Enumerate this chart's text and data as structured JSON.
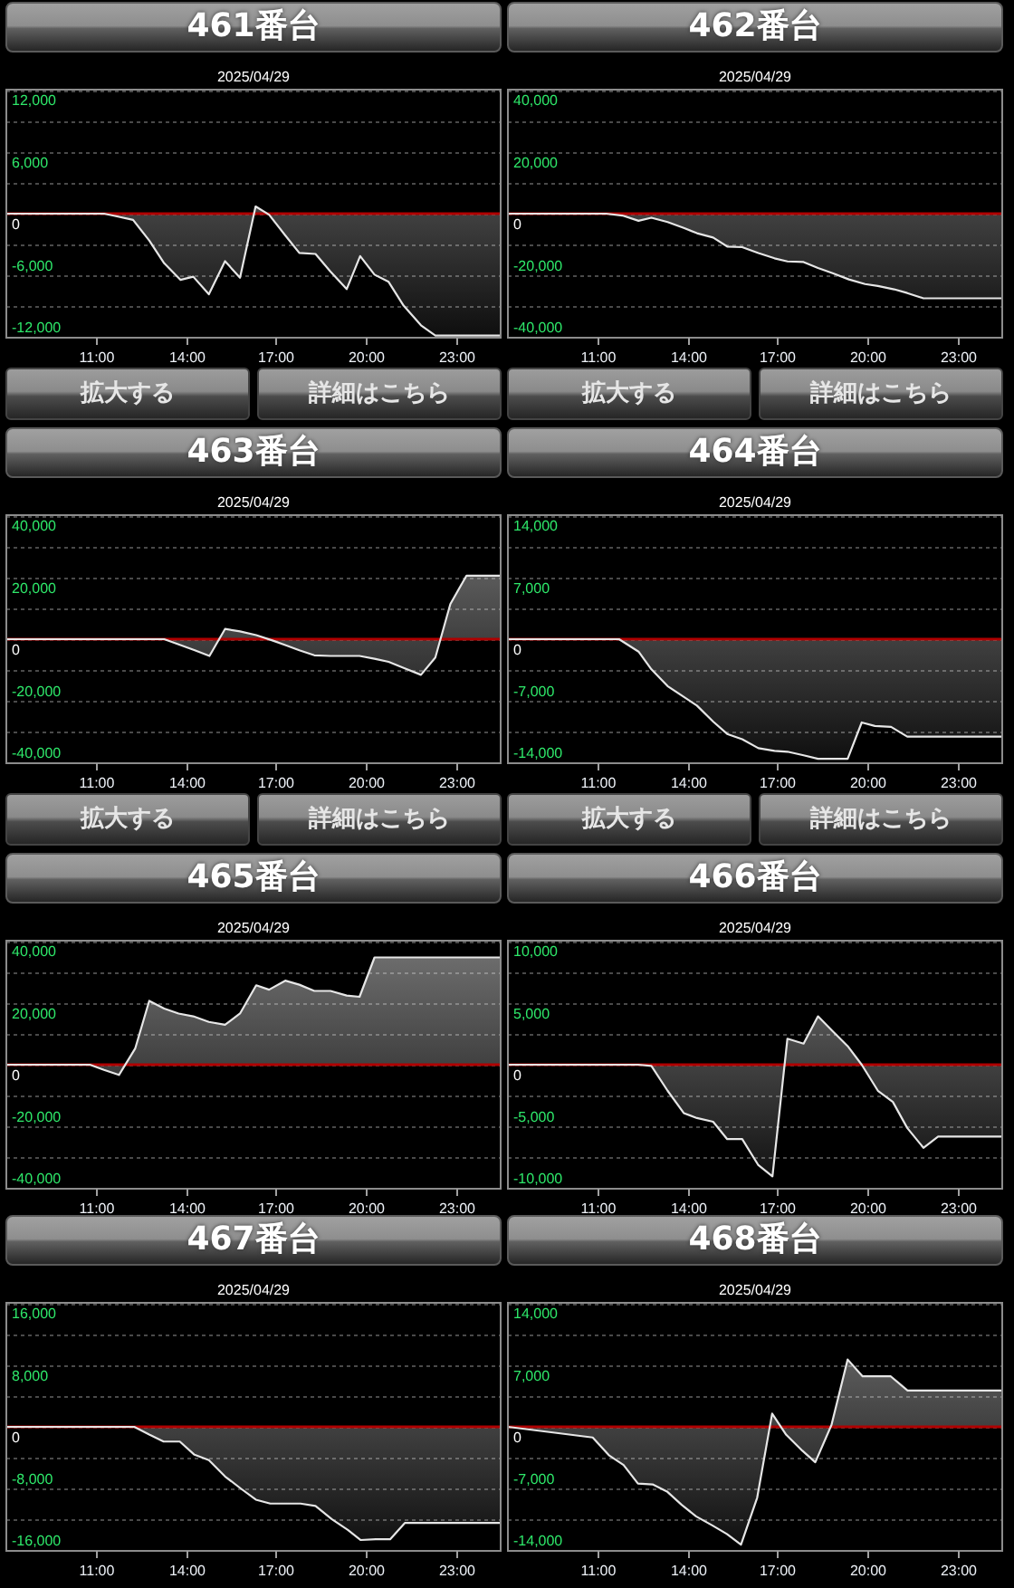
{
  "chart_data": [
    {
      "type": "area",
      "title": "461番台",
      "subtitle": "2025/04/29",
      "color": "#e6e6e6",
      "x": [
        8,
        11.26,
        11.59,
        12.23,
        12.77,
        13.27,
        13.81,
        14.24,
        14.76,
        15.3,
        15.8,
        16.32,
        16.77,
        17.31,
        17.78,
        18.32,
        18.82,
        19.36,
        19.81,
        20.29,
        20.76,
        21.26,
        21.84,
        22.32,
        24.5
      ],
      "values": [
        0,
        0,
        -200,
        -600,
        -2600,
        -4800,
        -6400,
        -6100,
        -7800,
        -4600,
        -6200,
        700,
        -100,
        -2100,
        -3800,
        -3900,
        -5600,
        -7300,
        -4100,
        -5900,
        -6600,
        -8900,
        -10800,
        -11800,
        -11800
      ],
      "xlim": [
        8,
        24.5
      ],
      "ylim": [
        -12000,
        12000
      ],
      "xticks": [
        {
          "value": 11,
          "label": "11:00"
        },
        {
          "value": 14,
          "label": "14:00"
        },
        {
          "value": 17,
          "label": "17:00"
        },
        {
          "value": 20,
          "label": "20:00"
        },
        {
          "value": 23,
          "label": "23:00"
        }
      ],
      "yticks": [
        {
          "value": -12000,
          "label": "-12,000"
        },
        {
          "value": -9000,
          "label": null
        },
        {
          "value": -6000,
          "label": "-6,000"
        },
        {
          "value": -3000,
          "label": null
        },
        {
          "value": 0,
          "label": "0"
        },
        {
          "value": 3000,
          "label": null
        },
        {
          "value": 6000,
          "label": "6,000"
        },
        {
          "value": 9000,
          "label": null
        },
        {
          "value": 12000,
          "label": "12,000"
        }
      ],
      "grid": "y",
      "ref_lines": [
        {
          "axis": "y",
          "value": 0,
          "color": "#b00000"
        }
      ],
      "annotations": [
        "拡大する",
        "詳細はこちら"
      ]
    },
    {
      "type": "area",
      "title": "462番台",
      "subtitle": "2025/04/29",
      "color": "#e6e6e6",
      "x": [
        8,
        11.28,
        11.82,
        12.36,
        12.79,
        13.33,
        13.87,
        14.31,
        14.85,
        15.32,
        15.82,
        16.36,
        16.9,
        17.33,
        17.87,
        18.35,
        18.84,
        19.38,
        19.92,
        20.35,
        20.89,
        21.33,
        21.87,
        24.5
      ],
      "values": [
        0,
        0,
        -600,
        -2300,
        -1300,
        -2700,
        -4600,
        -6300,
        -7700,
        -10600,
        -10800,
        -12700,
        -14400,
        -15400,
        -15600,
        -17500,
        -19200,
        -21200,
        -22700,
        -23300,
        -24400,
        -25600,
        -27300,
        -27300
      ],
      "xlim": [
        8,
        24.5
      ],
      "ylim": [
        -40000,
        40000
      ],
      "xticks": [
        {
          "value": 11,
          "label": "11:00"
        },
        {
          "value": 14,
          "label": "14:00"
        },
        {
          "value": 17,
          "label": "17:00"
        },
        {
          "value": 20,
          "label": "20:00"
        },
        {
          "value": 23,
          "label": "23:00"
        }
      ],
      "yticks": [
        {
          "value": -40000,
          "label": "-40,000"
        },
        {
          "value": -30000,
          "label": null
        },
        {
          "value": -20000,
          "label": "-20,000"
        },
        {
          "value": -10000,
          "label": null
        },
        {
          "value": 0,
          "label": "0"
        },
        {
          "value": 10000,
          "label": null
        },
        {
          "value": 20000,
          "label": "20,000"
        },
        {
          "value": 30000,
          "label": null
        },
        {
          "value": 40000,
          "label": "40,000"
        }
      ],
      "grid": "y",
      "ref_lines": [
        {
          "axis": "y",
          "value": 0,
          "color": "#b00000"
        }
      ],
      "annotations": [
        "拡大する",
        "詳細はこちら"
      ]
    },
    {
      "type": "area",
      "title": "463番台",
      "subtitle": "2025/04/29",
      "color": "#e6e6e6",
      "x": [
        8,
        13.27,
        13.75,
        14.29,
        14.78,
        15.3,
        15.8,
        16.34,
        16.88,
        17.31,
        17.78,
        18.28,
        18.82,
        19.36,
        19.79,
        20.29,
        20.76,
        21.3,
        21.84,
        22.32,
        22.82,
        23.36,
        24.5
      ],
      "values": [
        0,
        0,
        -1700,
        -3600,
        -5400,
        3300,
        2500,
        1300,
        -400,
        -1900,
        -3600,
        -5200,
        -5400,
        -5400,
        -5400,
        -6300,
        -7300,
        -9400,
        -11500,
        -5900,
        11300,
        20500,
        20500
      ],
      "xlim": [
        8,
        24.5
      ],
      "ylim": [
        -40000,
        40000
      ],
      "xticks": [
        {
          "value": 11,
          "label": "11:00"
        },
        {
          "value": 14,
          "label": "14:00"
        },
        {
          "value": 17,
          "label": "17:00"
        },
        {
          "value": 20,
          "label": "20:00"
        },
        {
          "value": 23,
          "label": "23:00"
        }
      ],
      "yticks": [
        {
          "value": -40000,
          "label": "-40,000"
        },
        {
          "value": -30000,
          "label": null
        },
        {
          "value": -20000,
          "label": "-20,000"
        },
        {
          "value": -10000,
          "label": null
        },
        {
          "value": 0,
          "label": "0"
        },
        {
          "value": 10000,
          "label": null
        },
        {
          "value": 20000,
          "label": "20,000"
        },
        {
          "value": 30000,
          "label": null
        },
        {
          "value": 40000,
          "label": "40,000"
        }
      ],
      "grid": "y",
      "ref_lines": [
        {
          "axis": "y",
          "value": 0,
          "color": "#b00000"
        }
      ],
      "annotations": [
        "拡大する",
        "詳細はこちら"
      ]
    },
    {
      "type": "area",
      "title": "464番台",
      "subtitle": "2025/04/29",
      "color": "#e6e6e6",
      "x": [
        8,
        11.71,
        12.36,
        12.79,
        13.33,
        14.31,
        14.85,
        15.32,
        15.82,
        16.36,
        16.9,
        17.33,
        17.87,
        18.35,
        19.34,
        19.81,
        20.25,
        20.79,
        21.33,
        24.5
      ],
      "values": [
        0,
        0,
        -1400,
        -3400,
        -5300,
        -7500,
        -9300,
        -10700,
        -11300,
        -12300,
        -12600,
        -12700,
        -13100,
        -13500,
        -13500,
        -9400,
        -9800,
        -9900,
        -11000,
        -11000
      ],
      "xlim": [
        8,
        24.5
      ],
      "ylim": [
        -14000,
        14000
      ],
      "xticks": [
        {
          "value": 11,
          "label": "11:00"
        },
        {
          "value": 14,
          "label": "14:00"
        },
        {
          "value": 17,
          "label": "17:00"
        },
        {
          "value": 20,
          "label": "20:00"
        },
        {
          "value": 23,
          "label": "23:00"
        }
      ],
      "yticks": [
        {
          "value": -14000,
          "label": "-14,000"
        },
        {
          "value": -10500,
          "label": null
        },
        {
          "value": -7000,
          "label": "-7,000"
        },
        {
          "value": -3500,
          "label": null
        },
        {
          "value": 0,
          "label": "0"
        },
        {
          "value": 3500,
          "label": null
        },
        {
          "value": 7000,
          "label": "7,000"
        },
        {
          "value": 10500,
          "label": null
        },
        {
          "value": 14000,
          "label": "14,000"
        }
      ],
      "grid": "y",
      "ref_lines": [
        {
          "axis": "y",
          "value": 0,
          "color": "#b00000"
        }
      ],
      "annotations": [
        "拡大する",
        "詳細はこちら"
      ]
    },
    {
      "type": "area",
      "title": "465番台",
      "subtitle": "2025/04/29",
      "color": "#e6e6e6",
      "x": [
        8,
        10.79,
        11.26,
        11.76,
        12.3,
        12.77,
        13.27,
        13.75,
        14.24,
        14.76,
        15.3,
        15.8,
        16.34,
        16.77,
        17.31,
        17.78,
        18.28,
        18.82,
        19.36,
        19.79,
        20.29,
        24.5
      ],
      "values": [
        0,
        0,
        -1700,
        -3300,
        5200,
        20600,
        18100,
        16500,
        15600,
        13800,
        12900,
        16500,
        25600,
        24200,
        27100,
        25800,
        23800,
        23800,
        22300,
        21900,
        34600,
        34600
      ],
      "xlim": [
        8,
        24.5
      ],
      "ylim": [
        -40000,
        40000
      ],
      "xticks": [
        {
          "value": 11,
          "label": "11:00"
        },
        {
          "value": 14,
          "label": "14:00"
        },
        {
          "value": 17,
          "label": "17:00"
        },
        {
          "value": 20,
          "label": "20:00"
        },
        {
          "value": 23,
          "label": "23:00"
        }
      ],
      "yticks": [
        {
          "value": -40000,
          "label": "-40,000"
        },
        {
          "value": -30000,
          "label": null
        },
        {
          "value": -20000,
          "label": "-20,000"
        },
        {
          "value": -10000,
          "label": null
        },
        {
          "value": 0,
          "label": "0"
        },
        {
          "value": 10000,
          "label": null
        },
        {
          "value": 20000,
          "label": "20,000"
        },
        {
          "value": 30000,
          "label": null
        },
        {
          "value": 40000,
          "label": "40,000"
        }
      ],
      "grid": "y",
      "ref_lines": [
        {
          "axis": "y",
          "value": 0,
          "color": "#b00000"
        }
      ]
    },
    {
      "type": "area",
      "title": "466番台",
      "subtitle": "2025/04/29",
      "color": "#e6e6e6",
      "x": [
        8,
        12.36,
        12.79,
        13.33,
        13.87,
        14.31,
        14.85,
        15.32,
        15.82,
        16.36,
        16.83,
        17.33,
        17.87,
        18.35,
        18.84,
        19.34,
        19.81,
        20.35,
        20.85,
        21.33,
        21.87,
        22.36,
        24.5
      ],
      "values": [
        0,
        0,
        -100,
        -2100,
        -3900,
        -4300,
        -4600,
        -6000,
        -6000,
        -8100,
        -9000,
        2100,
        1700,
        3900,
        2700,
        1500,
        0,
        -2100,
        -3000,
        -5100,
        -6700,
        -5800,
        -5800
      ],
      "xlim": [
        8,
        24.5
      ],
      "ylim": [
        -10000,
        10000
      ],
      "xticks": [
        {
          "value": 11,
          "label": "11:00"
        },
        {
          "value": 14,
          "label": "14:00"
        },
        {
          "value": 17,
          "label": "17:00"
        },
        {
          "value": 20,
          "label": "20:00"
        },
        {
          "value": 23,
          "label": "23:00"
        }
      ],
      "yticks": [
        {
          "value": -10000,
          "label": "-10,000"
        },
        {
          "value": -7500,
          "label": null
        },
        {
          "value": -5000,
          "label": "-5,000"
        },
        {
          "value": -2500,
          "label": null
        },
        {
          "value": 0,
          "label": "0"
        },
        {
          "value": 2500,
          "label": null
        },
        {
          "value": 5000,
          "label": "5,000"
        },
        {
          "value": 7500,
          "label": null
        },
        {
          "value": 10000,
          "label": "10,000"
        }
      ],
      "grid": "y",
      "ref_lines": [
        {
          "axis": "y",
          "value": 0,
          "color": "#b00000"
        }
      ]
    },
    {
      "type": "area",
      "title": "467番台",
      "subtitle": "2025/04/29",
      "color": "#e6e6e6",
      "x": [
        8,
        12.27,
        12.77,
        13.25,
        13.79,
        14.28,
        14.76,
        15.3,
        15.84,
        16.33,
        16.81,
        17.82,
        18.32,
        18.86,
        19.4,
        19.83,
        20.33,
        20.81,
        21.3,
        24.5
      ],
      "values": [
        0,
        0,
        -1000,
        -1900,
        -1900,
        -3600,
        -4300,
        -6400,
        -8000,
        -9400,
        -9900,
        -9900,
        -10200,
        -11900,
        -13300,
        -14600,
        -14500,
        -14500,
        -12400,
        -12400
      ],
      "xlim": [
        8,
        24.5
      ],
      "ylim": [
        -16000,
        16000
      ],
      "xticks": [
        {
          "value": 11,
          "label": "11:00"
        },
        {
          "value": 14,
          "label": "14:00"
        },
        {
          "value": 17,
          "label": "17:00"
        },
        {
          "value": 20,
          "label": "20:00"
        },
        {
          "value": 23,
          "label": "23:00"
        }
      ],
      "yticks": [
        {
          "value": -16000,
          "label": "-16,000"
        },
        {
          "value": -12000,
          "label": null
        },
        {
          "value": -8000,
          "label": "-8,000"
        },
        {
          "value": -4000,
          "label": null
        },
        {
          "value": 0,
          "label": "0"
        },
        {
          "value": 4000,
          "label": null
        },
        {
          "value": 8000,
          "label": "8,000"
        },
        {
          "value": 12000,
          "label": null
        },
        {
          "value": 16000,
          "label": "16,000"
        }
      ],
      "grid": "y",
      "ref_lines": [
        {
          "axis": "y",
          "value": 0,
          "color": "#b00000"
        }
      ]
    },
    {
      "type": "area",
      "title": "468番台",
      "subtitle": "2025/04/29",
      "color": "#e6e6e6",
      "x": [
        8,
        10.83,
        11.37,
        11.86,
        12.34,
        12.83,
        13.31,
        13.8,
        14.28,
        14.81,
        15.31,
        15.78,
        16.32,
        16.82,
        17.29,
        17.83,
        18.26,
        18.8,
        19.34,
        19.84,
        20.78,
        21.34,
        24.5
      ],
      "values": [
        0,
        -1200,
        -3200,
        -4300,
        -6400,
        -6500,
        -7300,
        -8800,
        -10100,
        -11100,
        -12100,
        -13300,
        -8000,
        1500,
        -900,
        -2700,
        -4000,
        200,
        7600,
        5700,
        5700,
        4100,
        4100
      ],
      "xlim": [
        8,
        24.5
      ],
      "ylim": [
        -14000,
        14000
      ],
      "xticks": [
        {
          "value": 11,
          "label": "11:00"
        },
        {
          "value": 14,
          "label": "14:00"
        },
        {
          "value": 17,
          "label": "17:00"
        },
        {
          "value": 20,
          "label": "20:00"
        },
        {
          "value": 23,
          "label": "23:00"
        }
      ],
      "yticks": [
        {
          "value": -14000,
          "label": "-14,000"
        },
        {
          "value": -10500,
          "label": null
        },
        {
          "value": -7000,
          "label": "-7,000"
        },
        {
          "value": -3500,
          "label": null
        },
        {
          "value": 0,
          "label": "0"
        },
        {
          "value": 3500,
          "label": null
        },
        {
          "value": 7000,
          "label": "7,000"
        },
        {
          "value": 10500,
          "label": null
        },
        {
          "value": 14000,
          "label": "14,000"
        }
      ],
      "grid": "y",
      "ref_lines": [
        {
          "axis": "y",
          "value": 0,
          "color": "#b00000"
        }
      ]
    }
  ]
}
